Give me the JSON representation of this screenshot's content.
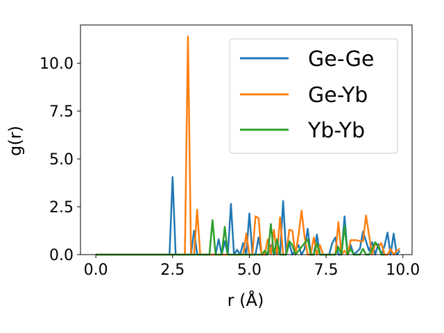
{
  "chart_data": {
    "type": "line",
    "xlabel": "r (Å)",
    "ylabel": "g(r)",
    "xlim": [
      -0.5,
      10.3
    ],
    "ylim": [
      0,
      12
    ],
    "x_ticks": [
      0.0,
      2.5,
      5.0,
      7.5,
      10.0
    ],
    "x_tick_labels": [
      "0.0",
      "2.5",
      "5.0",
      "7.5",
      "10.0"
    ],
    "y_ticks": [
      0.0,
      2.5,
      5.0,
      7.5,
      10.0
    ],
    "y_tick_labels": [
      "0.0",
      "2.5",
      "5.0",
      "7.5",
      "10.0"
    ],
    "grid": false,
    "legend_position": "top-right",
    "series": [
      {
        "name": "Ge-Ge",
        "color": "#1f77b4",
        "points": [
          [
            0.0,
            0.0
          ],
          [
            2.4,
            0.0
          ],
          [
            2.5,
            4.05
          ],
          [
            2.6,
            0.0
          ],
          [
            3.1,
            0.0
          ],
          [
            3.2,
            1.25
          ],
          [
            3.3,
            0.0
          ],
          [
            3.9,
            0.0
          ],
          [
            4.0,
            0.8
          ],
          [
            4.1,
            0.0
          ],
          [
            4.2,
            0.7
          ],
          [
            4.3,
            0.0
          ],
          [
            4.4,
            2.65
          ],
          [
            4.5,
            0.0
          ],
          [
            4.6,
            0.25
          ],
          [
            4.7,
            0.0
          ],
          [
            4.8,
            0.6
          ],
          [
            4.9,
            0.0
          ],
          [
            5.0,
            2.15
          ],
          [
            5.1,
            0.0
          ],
          [
            5.2,
            0.0
          ],
          [
            5.3,
            0.9
          ],
          [
            5.4,
            0.0
          ],
          [
            5.6,
            0.0
          ],
          [
            5.7,
            0.5
          ],
          [
            5.8,
            0.0
          ],
          [
            5.9,
            0.2
          ],
          [
            6.0,
            0.0
          ],
          [
            6.1,
            2.8
          ],
          [
            6.2,
            0.0
          ],
          [
            6.3,
            0.6
          ],
          [
            6.4,
            0.0
          ],
          [
            6.6,
            0.5
          ],
          [
            6.7,
            0.0
          ],
          [
            6.8,
            0.3
          ],
          [
            6.9,
            1.35
          ],
          [
            7.0,
            0.0
          ],
          [
            7.1,
            0.0
          ],
          [
            7.2,
            1.05
          ],
          [
            7.3,
            0.0
          ],
          [
            7.6,
            0.0
          ],
          [
            7.7,
            0.6
          ],
          [
            7.8,
            0.9
          ],
          [
            7.9,
            0.0
          ],
          [
            8.0,
            0.0
          ],
          [
            8.1,
            2.0
          ],
          [
            8.2,
            0.0
          ],
          [
            8.3,
            0.5
          ],
          [
            8.4,
            0.0
          ],
          [
            8.6,
            0.3
          ],
          [
            8.7,
            1.2
          ],
          [
            8.8,
            0.7
          ],
          [
            8.9,
            0.2
          ],
          [
            9.0,
            0.65
          ],
          [
            9.1,
            0.0
          ],
          [
            9.2,
            0.55
          ],
          [
            9.3,
            0.0
          ],
          [
            9.4,
            0.45
          ],
          [
            9.5,
            1.15
          ],
          [
            9.6,
            0.0
          ],
          [
            9.7,
            1.1
          ],
          [
            9.8,
            0.0
          ],
          [
            9.9,
            0.2
          ]
        ]
      },
      {
        "name": "Ge-Yb",
        "color": "#ff7f0e",
        "points": [
          [
            0.0,
            0.0
          ],
          [
            2.9,
            0.0
          ],
          [
            3.0,
            11.4
          ],
          [
            3.1,
            0.0
          ],
          [
            3.2,
            0.0
          ],
          [
            3.3,
            2.35
          ],
          [
            3.4,
            0.0
          ],
          [
            3.5,
            0.0
          ],
          [
            4.8,
            0.0
          ],
          [
            4.9,
            1.1
          ],
          [
            5.0,
            0.0
          ],
          [
            5.1,
            0.0
          ],
          [
            5.2,
            2.0
          ],
          [
            5.3,
            1.9
          ],
          [
            5.4,
            0.0
          ],
          [
            5.5,
            0.0
          ],
          [
            5.6,
            0.8
          ],
          [
            5.7,
            0.0
          ],
          [
            5.8,
            1.3
          ],
          [
            5.9,
            0.0
          ],
          [
            6.0,
            1.95
          ],
          [
            6.1,
            0.0
          ],
          [
            6.2,
            0.0
          ],
          [
            6.3,
            1.3
          ],
          [
            6.4,
            1.25
          ],
          [
            6.5,
            0.0
          ],
          [
            6.6,
            1.0
          ],
          [
            6.7,
            2.3
          ],
          [
            6.8,
            0.9
          ],
          [
            6.9,
            0.0
          ],
          [
            7.0,
            0.0
          ],
          [
            7.1,
            0.9
          ],
          [
            7.2,
            0.0
          ],
          [
            7.3,
            0.5
          ],
          [
            7.4,
            0.0
          ],
          [
            7.8,
            0.0
          ],
          [
            7.9,
            1.7
          ],
          [
            8.0,
            0.0
          ],
          [
            8.1,
            0.2
          ],
          [
            8.2,
            0.0
          ],
          [
            8.3,
            0.75
          ],
          [
            8.4,
            0.75
          ],
          [
            8.5,
            0.75
          ],
          [
            8.6,
            0.7
          ],
          [
            8.7,
            0.7
          ],
          [
            8.8,
            2.05
          ],
          [
            8.9,
            1.0
          ],
          [
            9.0,
            0.0
          ],
          [
            9.1,
            0.6
          ],
          [
            9.2,
            0.4
          ],
          [
            9.3,
            0.6
          ],
          [
            9.4,
            0.0
          ],
          [
            9.5,
            0.0
          ],
          [
            9.6,
            0.3
          ],
          [
            9.7,
            0.0
          ],
          [
            9.8,
            0.2
          ],
          [
            9.9,
            0.3
          ]
        ]
      },
      {
        "name": "Yb-Yb",
        "color": "#2ca02c",
        "points": [
          [
            0.0,
            0.0
          ],
          [
            3.7,
            0.0
          ],
          [
            3.8,
            1.8
          ],
          [
            3.9,
            0.0
          ],
          [
            4.1,
            0.0
          ],
          [
            4.2,
            1.45
          ],
          [
            4.3,
            0.0
          ],
          [
            5.4,
            0.0
          ],
          [
            5.5,
            0.2
          ],
          [
            5.6,
            0.0
          ],
          [
            5.7,
            1.6
          ],
          [
            5.8,
            0.0
          ],
          [
            5.9,
            0.8
          ],
          [
            6.0,
            0.0
          ],
          [
            6.1,
            0.0
          ],
          [
            6.2,
            0.0
          ],
          [
            6.3,
            0.7
          ],
          [
            6.4,
            0.5
          ],
          [
            6.5,
            0.0
          ],
          [
            6.9,
            0.8
          ],
          [
            7.0,
            0.0
          ],
          [
            7.1,
            0.0
          ],
          [
            7.2,
            0.6
          ],
          [
            7.3,
            0.0
          ],
          [
            7.8,
            0.0
          ],
          [
            7.9,
            0.4
          ],
          [
            8.0,
            0.0
          ],
          [
            8.1,
            1.5
          ],
          [
            8.2,
            0.0
          ],
          [
            8.3,
            0.3
          ],
          [
            8.4,
            0.0
          ],
          [
            8.6,
            0.0
          ],
          [
            8.7,
            0.3
          ],
          [
            8.8,
            0.0
          ],
          [
            8.9,
            0.0
          ],
          [
            9.0,
            0.3
          ],
          [
            9.1,
            0.65
          ],
          [
            9.2,
            0.4
          ],
          [
            9.3,
            0.0
          ],
          [
            9.4,
            0.0
          ]
        ]
      }
    ]
  }
}
